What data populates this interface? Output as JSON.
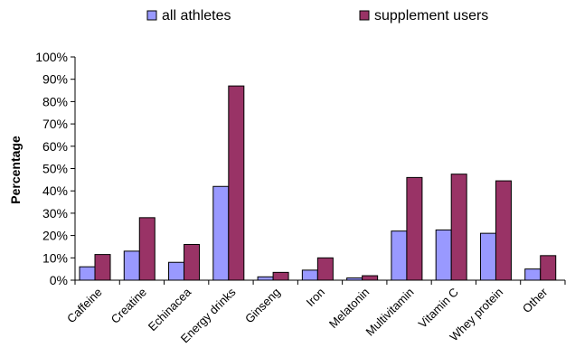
{
  "chart_data": {
    "type": "bar",
    "ylabel": "Percentage",
    "xlabel": "",
    "ylim": [
      0,
      100
    ],
    "ytick_step": 10,
    "y_unit": "%",
    "grid": false,
    "legend_position": "top",
    "categories": [
      "Caffeine",
      "Creatine",
      "Echinacea",
      "Energy drinks",
      "Ginseng",
      "Iron",
      "Melatonin",
      "Multivitamin",
      "Vitamin C",
      "Whey protein",
      "Other"
    ],
    "series": [
      {
        "name": "all athletes",
        "color": "#9999ff",
        "values": [
          6,
          13,
          8,
          42,
          1.5,
          4.5,
          1,
          22,
          22.5,
          21,
          5
        ]
      },
      {
        "name": "supplement users",
        "color": "#993366",
        "values": [
          11.5,
          28,
          16,
          87,
          3.5,
          10,
          2,
          46,
          47.5,
          44.5,
          11
        ]
      }
    ]
  }
}
